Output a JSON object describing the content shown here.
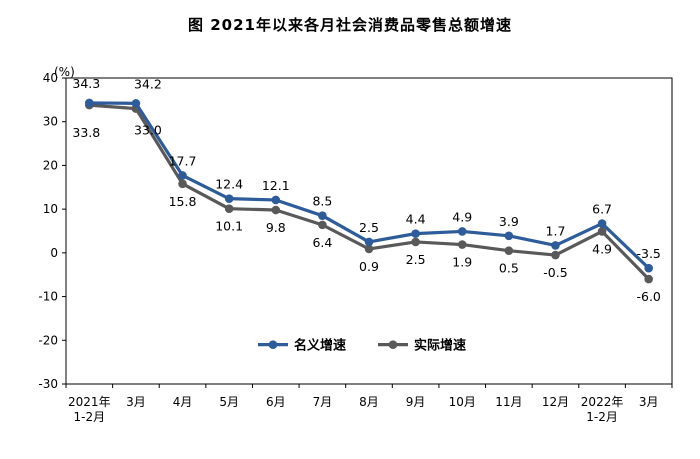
{
  "chart_data": {
    "type": "line",
    "title": "图 2021年以来各月社会消费品零售总额增速",
    "ylabel": "(%)",
    "ylim": [
      -30,
      40
    ],
    "yticks": [
      40,
      30,
      20,
      10,
      0,
      -10,
      -20,
      -30
    ],
    "categories": [
      [
        "2021年",
        "1-2月"
      ],
      [
        "3月"
      ],
      [
        "4月"
      ],
      [
        "5月"
      ],
      [
        "6月"
      ],
      [
        "7月"
      ],
      [
        "8月"
      ],
      [
        "9月"
      ],
      [
        "10月"
      ],
      [
        "11月"
      ],
      [
        "12月"
      ],
      [
        "2022年",
        "1-2月"
      ],
      [
        "3月"
      ]
    ],
    "series": [
      {
        "name": "名义增速",
        "color": "#2e5c9a",
        "values": [
          34.3,
          34.2,
          17.7,
          12.4,
          12.1,
          8.5,
          2.5,
          4.4,
          4.9,
          3.9,
          1.7,
          6.7,
          -3.5
        ],
        "labels": [
          "34.3",
          "34.2",
          "17.7",
          "12.4",
          "12.1",
          "8.5",
          "2.5",
          "4.4",
          "4.9",
          "3.9",
          "1.7",
          "6.7",
          "-3.5"
        ]
      },
      {
        "name": "实际增速",
        "color": "#595959",
        "values": [
          33.8,
          33.0,
          15.8,
          10.1,
          9.8,
          6.4,
          0.9,
          2.5,
          1.9,
          0.5,
          -0.5,
          4.9,
          -6.0
        ],
        "labels": [
          "33.8",
          "33.0",
          "15.8",
          "10.1",
          "9.8",
          "6.4",
          "0.9",
          "2.5",
          "1.9",
          "0.5",
          "-0.5",
          "4.9",
          "-6.0"
        ]
      }
    ],
    "legend_position": "bottom-center",
    "grid": false
  }
}
